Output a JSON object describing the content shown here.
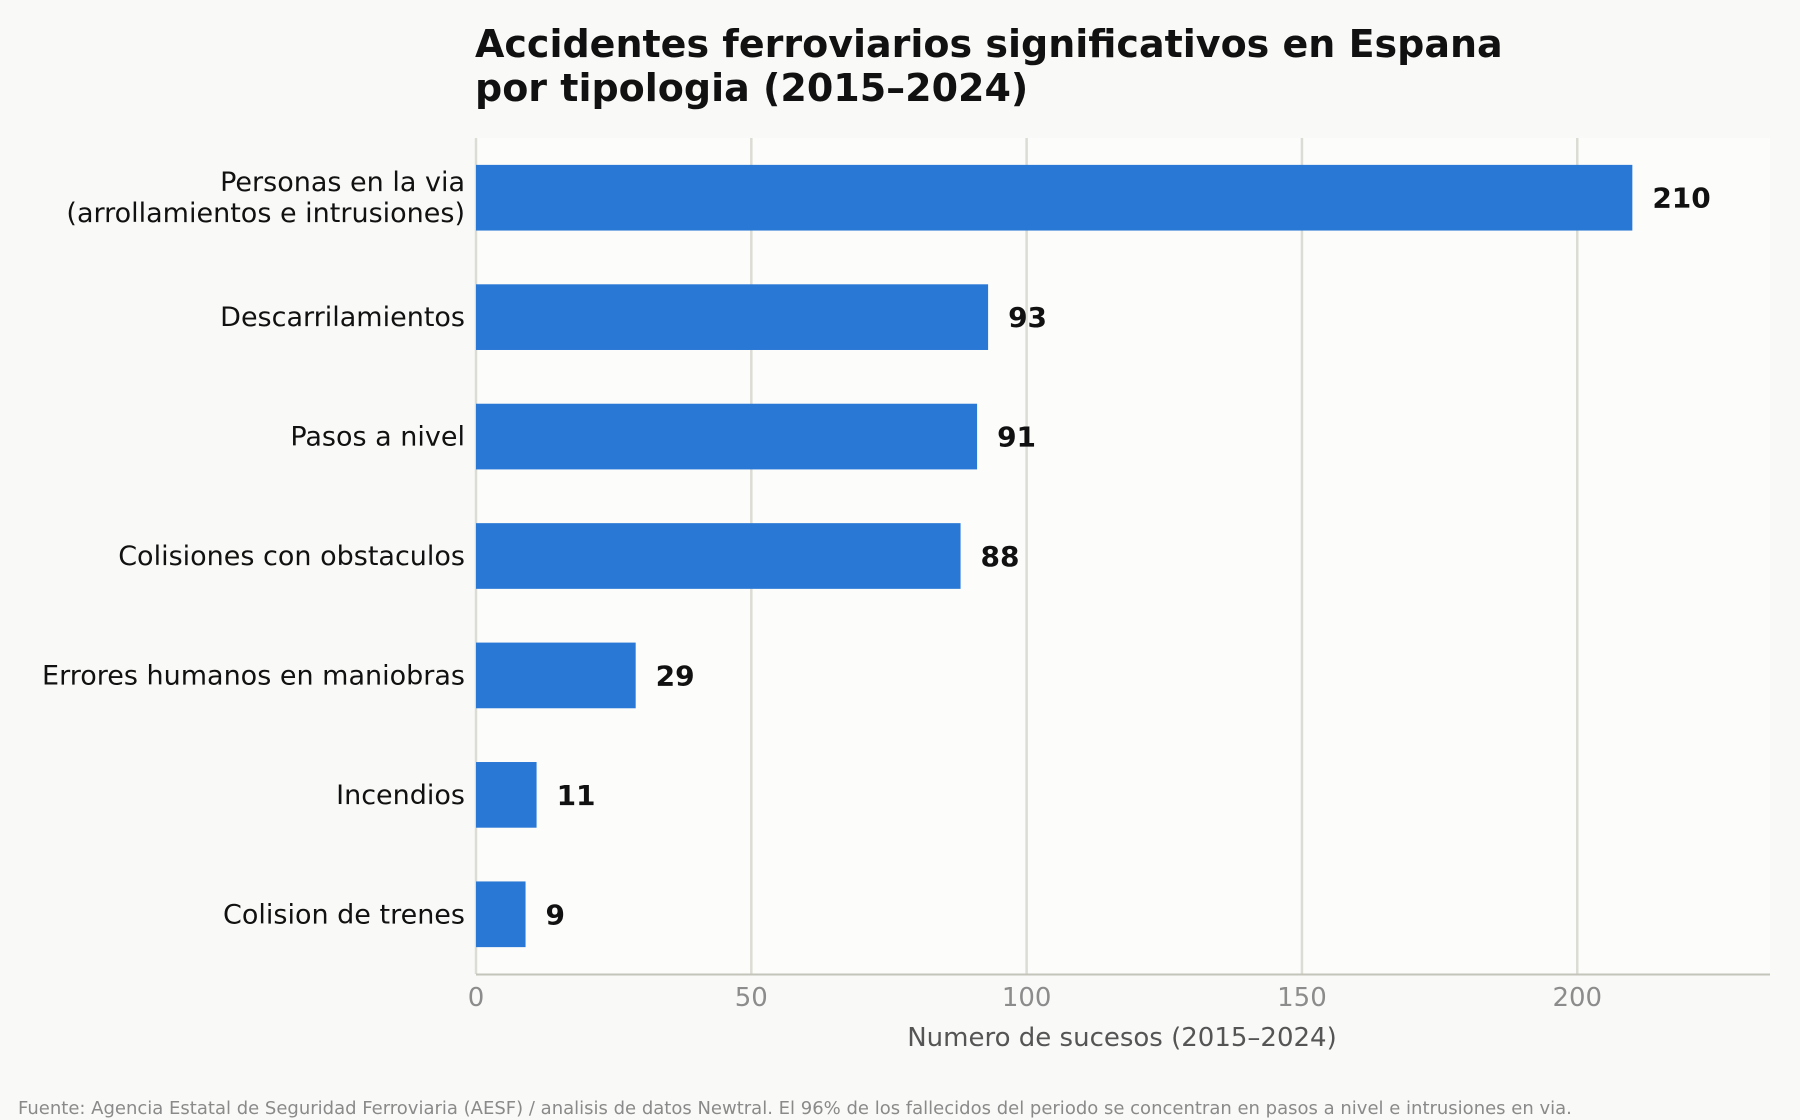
{
  "chart_data": {
    "type": "bar",
    "orientation": "horizontal",
    "title_lines": [
      "Accidentes ferroviarios significativos en Espana",
      "por tipologia (2015–2024)"
    ],
    "categories": [
      [
        "Personas en la via",
        "(arrollamientos e intrusiones)"
      ],
      [
        "Descarrilamientos"
      ],
      [
        "Pasos a nivel"
      ],
      [
        "Colisiones con obstaculos"
      ],
      [
        "Errores humanos en maniobras"
      ],
      [
        "Incendios"
      ],
      [
        "Colision de trenes"
      ]
    ],
    "values": [
      210,
      93,
      91,
      88,
      29,
      11,
      9
    ],
    "value_labels": [
      "210",
      "93",
      "91",
      "88",
      "29",
      "11",
      "9"
    ],
    "xlabel": "Numero de sucesos (2015–2024)",
    "ylabel": "",
    "xlim": [
      0,
      235
    ],
    "xticks": [
      0,
      50,
      100,
      150,
      200
    ],
    "xtick_labels": [
      "0",
      "50",
      "100",
      "150",
      "200"
    ],
    "grid": "vertical",
    "bar_color": "#2a78d6",
    "source": "Fuente: Agencia Estatal de Seguridad Ferroviaria (AESF) / analisis de datos Newtral. El 96% de los fallecidos del periodo se concentran en pasos a nivel e intrusiones en via."
  }
}
